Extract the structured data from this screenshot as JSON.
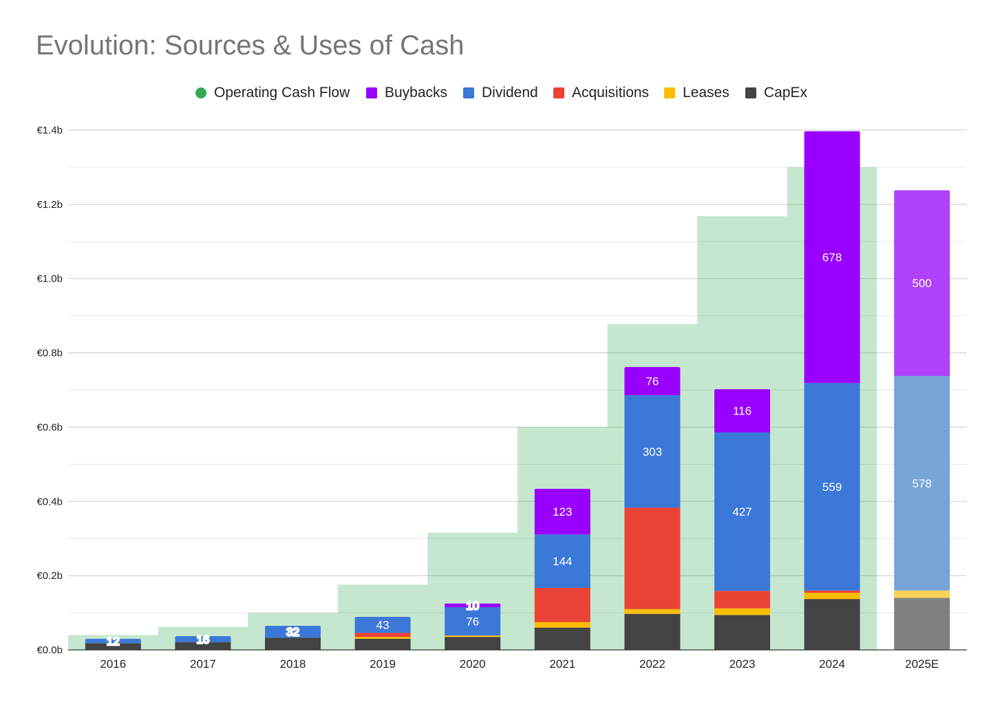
{
  "chart_data": {
    "type": "bar",
    "title": "Evolution: Sources & Uses of Cash",
    "categories": [
      "2016",
      "2017",
      "2018",
      "2019",
      "2020",
      "2021",
      "2022",
      "2023",
      "2024",
      "2025E"
    ],
    "ylim": [
      0,
      1.4
    ],
    "y_ticks": [
      "€0.0b",
      "€0.2b",
      "€0.4b",
      "€0.6b",
      "€0.8b",
      "€1.0b",
      "€1.2b",
      "€1.4b"
    ],
    "y_unit": "€ billions",
    "grid": true,
    "legend_position": "top",
    "stacked": true,
    "estimated_categories": [
      "2025E"
    ],
    "area": {
      "name": "Operating Cash Flow",
      "type": "stepped-area",
      "color": "#34a853",
      "values": [
        0.04,
        0.062,
        0.1,
        0.176,
        0.316,
        0.6,
        0.878,
        1.168,
        1.3,
        null
      ]
    },
    "series": [
      {
        "name": "CapEx",
        "color": "#434343",
        "estimate_color": "#808080",
        "values": [
          0.018,
          0.021,
          0.033,
          0.03,
          0.035,
          0.06,
          0.097,
          0.094,
          0.137,
          0.14
        ]
      },
      {
        "name": "Leases",
        "color": "#fbbc04",
        "estimate_color": "#f9d15a",
        "values": [
          0.0,
          0.0,
          0.0,
          0.005,
          0.004,
          0.015,
          0.013,
          0.018,
          0.017,
          0.02
        ]
      },
      {
        "name": "Acquisitions",
        "color": "#ea4335",
        "estimate_color": "#ea4335",
        "values": [
          0.0,
          0.0,
          0.0,
          0.011,
          0.0,
          0.092,
          0.273,
          0.047,
          0.006,
          0.0
        ]
      },
      {
        "name": "Dividend",
        "color": "#3c78d8",
        "estimate_color": "#76a5d6",
        "values": [
          0.012,
          0.016,
          0.032,
          0.043,
          0.076,
          0.144,
          0.303,
          0.427,
          0.559,
          0.578
        ],
        "labels": [
          "12",
          "16",
          "32",
          "43",
          "76",
          "144",
          "303",
          "427",
          "559",
          "578"
        ]
      },
      {
        "name": "Buybacks",
        "color": "#9900ff",
        "estimate_color": "#b041fb",
        "values": [
          0.0,
          0.0,
          0.0,
          0.0,
          0.01,
          0.123,
          0.076,
          0.116,
          0.678,
          0.5
        ],
        "labels": [
          "",
          "",
          "",
          "",
          "10",
          "123",
          "76",
          "116",
          "678",
          "500"
        ]
      }
    ],
    "legend": [
      {
        "name": "Operating Cash Flow",
        "color": "#34a853",
        "shape": "circle"
      },
      {
        "name": "Buybacks",
        "color": "#9900ff",
        "shape": "square"
      },
      {
        "name": "Dividend",
        "color": "#3c78d8",
        "shape": "square"
      },
      {
        "name": "Acquisitions",
        "color": "#ea4335",
        "shape": "square"
      },
      {
        "name": "Leases",
        "color": "#fbbc04",
        "shape": "square"
      },
      {
        "name": "CapEx",
        "color": "#434343",
        "shape": "square"
      }
    ]
  }
}
